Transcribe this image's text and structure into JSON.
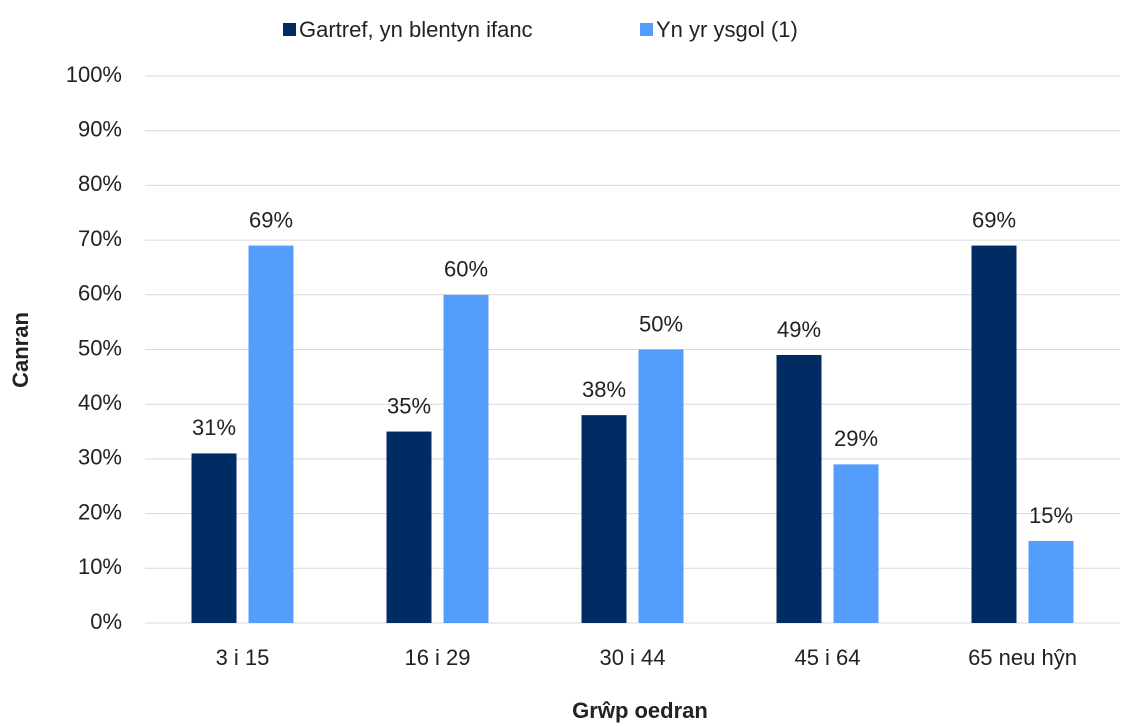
{
  "chart_data": {
    "type": "bar",
    "x_label": "Grŵp oedran",
    "y_label": "Canran",
    "categories": [
      "3 i 15",
      "16 i 29",
      "30 i 44",
      "45 i 64",
      "65 neu hŷn"
    ],
    "series": [
      {
        "name": "Gartref, yn blentyn ifanc",
        "color": "#002b63",
        "values": [
          31,
          35,
          38,
          49,
          69
        ],
        "value_labels": [
          "31%",
          "35%",
          "38%",
          "49%",
          "69%"
        ]
      },
      {
        "name": "Yn yr ysgol (1)",
        "color": "#559dfd",
        "values": [
          69,
          60,
          50,
          29,
          15
        ],
        "value_labels": [
          "69%",
          "60%",
          "50%",
          "29%",
          "15%"
        ]
      }
    ],
    "ylim": [
      0,
      100
    ],
    "yticks": [
      {
        "value": 0,
        "label": "0%"
      },
      {
        "value": 10,
        "label": "10%"
      },
      {
        "value": 20,
        "label": "20%"
      },
      {
        "value": 30,
        "label": "30%"
      },
      {
        "value": 40,
        "label": "40%"
      },
      {
        "value": 50,
        "label": "50%"
      },
      {
        "value": 60,
        "label": "60%"
      },
      {
        "value": 70,
        "label": "70%"
      },
      {
        "value": 80,
        "label": "80%"
      },
      {
        "value": 90,
        "label": "90%"
      },
      {
        "value": 100,
        "label": "100%"
      }
    ],
    "grid": true,
    "legend": "top"
  }
}
